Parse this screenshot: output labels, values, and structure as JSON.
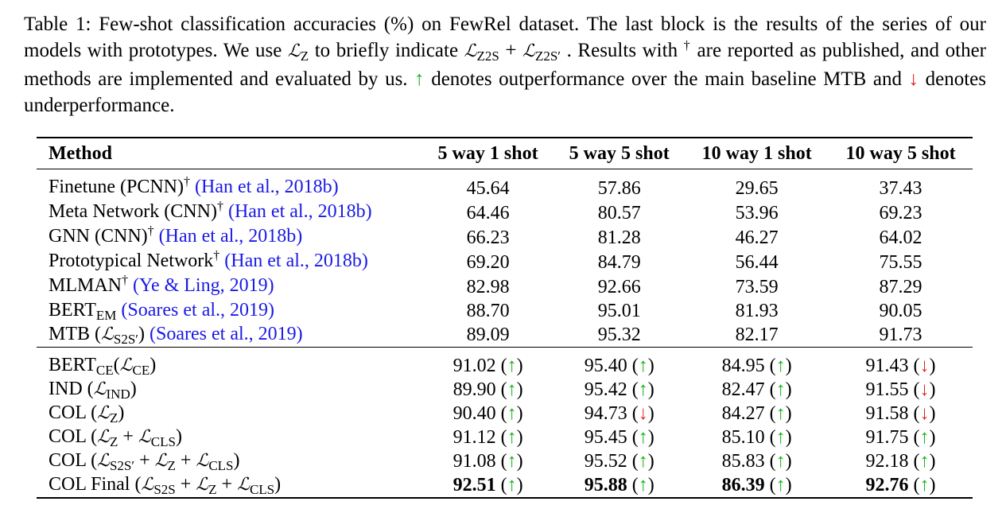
{
  "caption": {
    "part1": "Table 1: Few-shot classification accuracies (%) on FewRel dataset. The last block is the results of the series of our models with prototypes. We use ",
    "lz": "ℒ",
    "lz_sub": "Z",
    "part2": " to briefly indicate ",
    "lz2s": "ℒ",
    "lz2s_sub": "Z2S",
    "plus": " + ",
    "lz2sp": "ℒ",
    "lz2sp_sub": "Z2S′",
    "part3": " . Results with ",
    "dagger": "†",
    "part4": " are reported as published, and other methods are implemented and evaluated by us. ",
    "up": "↑",
    "part5": " denotes outperformance over the main baseline MTB and ",
    "down": "↓",
    "part6": " denotes underperformance."
  },
  "table": {
    "headers": [
      "Method",
      "5 way 1 shot",
      "5 way 5 shot",
      "10 way 1 shot",
      "10 way 5 shot"
    ],
    "block1": [
      {
        "method": "Finetune (PCNN)",
        "cite": "(Han et al., 2018b)",
        "values": [
          "45.64",
          "57.86",
          "29.65",
          "37.43"
        ]
      },
      {
        "method": "Meta Network (CNN)",
        "cite": "(Han et al., 2018b)",
        "values": [
          "64.46",
          "80.57",
          "53.96",
          "69.23"
        ]
      },
      {
        "method": "GNN (CNN)",
        "cite": "(Han et al., 2018b)",
        "values": [
          "66.23",
          "81.28",
          "46.27",
          "64.02"
        ]
      },
      {
        "method": "Prototypical Network",
        "cite": "(Han et al., 2018b)",
        "values": [
          "69.20",
          "84.79",
          "56.44",
          "75.55"
        ]
      },
      {
        "method": "MLMAN",
        "cite": "(Ye & Ling, 2019)",
        "values": [
          "82.98",
          "92.66",
          "73.59",
          "87.29"
        ]
      },
      {
        "method": "BERT",
        "method_sub": "EM",
        "cite": "(Soares et al., 2019)",
        "values": [
          "88.70",
          "95.01",
          "81.93",
          "90.05"
        ]
      },
      {
        "method": "MTB",
        "cite": "(Soares et al., 2019)",
        "values": [
          "89.09",
          "95.32",
          "82.17",
          "91.73"
        ]
      }
    ],
    "block2": [
      {
        "values": [
          "91.02",
          "95.40",
          "84.95",
          "91.43"
        ],
        "marks": [
          "↑",
          "↑",
          "↑",
          "↓"
        ]
      },
      {
        "values": [
          "89.90",
          "95.42",
          "82.47",
          "91.55"
        ],
        "marks": [
          "↑",
          "↑",
          "↑",
          "↓"
        ]
      },
      {
        "values": [
          "90.40",
          "94.73",
          "84.27",
          "91.58"
        ],
        "marks": [
          "↑",
          "↓",
          "↑",
          "↓"
        ]
      },
      {
        "values": [
          "91.12",
          "95.45",
          "85.10",
          "91.75"
        ],
        "marks": [
          "↑",
          "↑",
          "↑",
          "↑"
        ]
      },
      {
        "values": [
          "91.08",
          "95.52",
          "85.83",
          "92.18"
        ],
        "marks": [
          "↑",
          "↑",
          "↑",
          "↑"
        ]
      },
      {
        "values": [
          "92.51",
          "95.88",
          "86.39",
          "92.76"
        ],
        "marks": [
          "↑",
          "↑",
          "↑",
          "↑"
        ]
      }
    ],
    "block2_methods": {
      "r0": {
        "name": "BERT",
        "name_sub": "CE",
        "open": "(",
        "l": "ℒ",
        "l_sub": "CE",
        "close": ")"
      },
      "r1": {
        "name": "IND",
        "open": " (",
        "l": "ℒ",
        "l_sub": "IND",
        "close": ")"
      },
      "r2": {
        "name": "COL",
        "open": " (",
        "l": "ℒ",
        "l_sub": "Z",
        "close": ")"
      },
      "r3": {
        "name": "COL",
        "open": " (",
        "l": "ℒ",
        "l_sub": "Z",
        "plus": " + ",
        "l2": "ℒ",
        "l2_sub": "CLS",
        "close": ")"
      },
      "r4": {
        "name": "COL",
        "open": " (",
        "l": "ℒ",
        "l_sub": "S2S′",
        "plus": " + ",
        "l2": "ℒ",
        "l2_sub": "Z",
        "plus2": " + ",
        "l3": "ℒ",
        "l3_sub": "CLS",
        "close": ")"
      },
      "r5": {
        "name": "COL Final",
        "open": " (",
        "l": "ℒ",
        "l_sub": "S2S",
        "plus": " + ",
        "l2": "ℒ",
        "l2_sub": "Z",
        "plus2": " + ",
        "l3": "ℒ",
        "l3_sub": "CLS",
        "close": ")"
      }
    },
    "mtb_loss": {
      "open": " (",
      "l": "ℒ",
      "l_sub": "S2S′",
      "close": ") "
    },
    "dagger": "†",
    "lparen": " (",
    "rparen": ")"
  },
  "colors": {
    "up": "#11b411",
    "down": "#e61e1e",
    "cite": "#1a1ae6"
  }
}
